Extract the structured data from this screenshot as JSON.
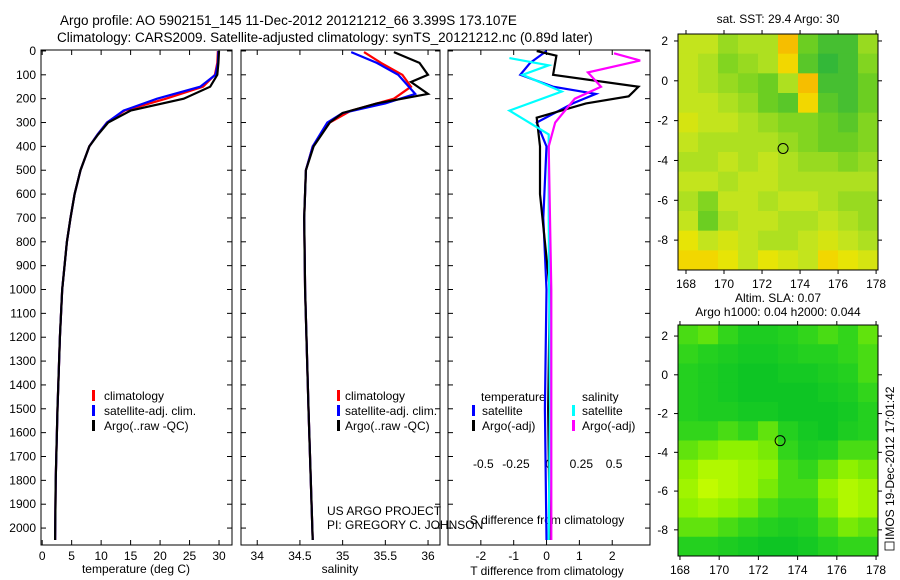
{
  "title": {
    "line1": "Argo profile: AO 5902151_145 11-Dec-2012 20121212_66 3.399S 173.107E",
    "line2": "Climatology: CARS2009. Satellite-adjusted climatology: synTS_20121212.nc (0.89d later)"
  },
  "credit": {
    "line1": "US ARGO PROJECT",
    "line2": "PI: GREGORY C. JOHNSON"
  },
  "stamp": "IMOS 19-Dec-2012 17:01:42",
  "chart_data": [
    {
      "id": "temperature",
      "type": "line",
      "xlabel": "temperature (deg C)",
      "ylabel": "depth",
      "xlim": [
        -0.2,
        32.2
      ],
      "ylim": [
        -4,
        2071
      ],
      "xticks": [
        0,
        5,
        10,
        15,
        20,
        25,
        30
      ],
      "yticks": [
        0,
        100,
        200,
        300,
        400,
        500,
        600,
        700,
        800,
        900,
        1000,
        1100,
        1200,
        1300,
        1400,
        1500,
        1600,
        1700,
        1800,
        1900,
        2000
      ],
      "legend": [
        "climatology",
        "satellite-adj. clim.",
        "Argo(..raw -QC)"
      ],
      "series": [
        {
          "name": "climatology",
          "color": "#ff0000",
          "points": [
            [
              29.8,
              0
            ],
            [
              29.7,
              50
            ],
            [
              29.3,
              100
            ],
            [
              27.3,
              150
            ],
            [
              21,
              200
            ],
            [
              14,
              250
            ],
            [
              11,
              300
            ],
            [
              9.4,
              350
            ],
            [
              8,
              400
            ],
            [
              6.5,
              500
            ],
            [
              5.5,
              600
            ],
            [
              4.8,
              700
            ],
            [
              4.2,
              800
            ],
            [
              3.4,
              1000
            ],
            [
              3.0,
              1200
            ],
            [
              2.6,
              1500
            ],
            [
              2.3,
              1800
            ],
            [
              2.2,
              2050
            ]
          ]
        },
        {
          "name": "satellite-adj. clim.",
          "color": "#0000ff",
          "points": [
            [
              29.9,
              0
            ],
            [
              29.8,
              50
            ],
            [
              29.4,
              100
            ],
            [
              26.8,
              150
            ],
            [
              19.5,
              200
            ],
            [
              13.8,
              250
            ],
            [
              11,
              300
            ],
            [
              9.4,
              350
            ],
            [
              8,
              400
            ],
            [
              6.5,
              500
            ],
            [
              5.5,
              600
            ],
            [
              4.8,
              700
            ],
            [
              4.2,
              800
            ],
            [
              3.4,
              1000
            ],
            [
              3.0,
              1200
            ],
            [
              2.6,
              1500
            ],
            [
              2.3,
              1800
            ],
            [
              2.2,
              2050
            ]
          ]
        },
        {
          "name": "Argo(..raw -QC)",
          "color": "#000000",
          "points": [
            [
              30,
              0
            ],
            [
              29.9,
              50
            ],
            [
              29.7,
              100
            ],
            [
              28.5,
              150
            ],
            [
              24,
              200
            ],
            [
              15,
              250
            ],
            [
              11.2,
              300
            ],
            [
              9.5,
              350
            ],
            [
              8,
              400
            ],
            [
              6.5,
              500
            ],
            [
              5.5,
              600
            ],
            [
              4.8,
              700
            ],
            [
              4.2,
              800
            ],
            [
              3.4,
              1000
            ],
            [
              3.0,
              1200
            ],
            [
              2.6,
              1500
            ],
            [
              2.3,
              1800
            ],
            [
              2.2,
              2050
            ]
          ]
        }
      ]
    },
    {
      "id": "salinity",
      "type": "line",
      "xlabel": "salinity",
      "xlim": [
        33.81,
        36.14
      ],
      "ylim": [
        -4,
        2071
      ],
      "xticks": [
        34,
        34.5,
        35,
        35.5,
        36
      ],
      "legend": [
        "climatology",
        "satellite-adj. clim.",
        "Argo(..raw -QC)"
      ],
      "series": [
        {
          "name": "climatology",
          "color": "#ff0000",
          "points": [
            [
              35.25,
              5
            ],
            [
              35.45,
              50
            ],
            [
              35.7,
              100
            ],
            [
              35.8,
              150
            ],
            [
              35.6,
              200
            ],
            [
              35.1,
              250
            ],
            [
              34.85,
              300
            ],
            [
              34.65,
              400
            ],
            [
              34.57,
              500
            ],
            [
              34.55,
              700
            ],
            [
              34.56,
              1000
            ],
            [
              34.6,
              1500
            ],
            [
              34.65,
              2050
            ]
          ]
        },
        {
          "name": "satellite-adj. clim.",
          "color": "#0000ff",
          "points": [
            [
              35.1,
              5
            ],
            [
              35.4,
              50
            ],
            [
              35.65,
              100
            ],
            [
              35.85,
              180
            ],
            [
              35.5,
              220
            ],
            [
              35.0,
              260
            ],
            [
              34.82,
              300
            ],
            [
              34.65,
              400
            ],
            [
              34.57,
              500
            ],
            [
              34.55,
              700
            ],
            [
              34.56,
              1000
            ],
            [
              34.6,
              1500
            ],
            [
              34.65,
              2050
            ]
          ]
        },
        {
          "name": "Argo(..raw -QC)",
          "color": "#000000",
          "points": [
            [
              35.6,
              5
            ],
            [
              35.9,
              50
            ],
            [
              36.0,
              100
            ],
            [
              35.8,
              130
            ],
            [
              36.0,
              180
            ],
            [
              35.4,
              220
            ],
            [
              35.0,
              260
            ],
            [
              34.85,
              300
            ],
            [
              34.66,
              400
            ],
            [
              34.57,
              500
            ],
            [
              34.55,
              700
            ],
            [
              34.56,
              1000
            ],
            [
              34.6,
              1500
            ],
            [
              34.65,
              2050
            ]
          ]
        }
      ]
    },
    {
      "id": "difference",
      "type": "line",
      "xlabel": "T difference from climatology",
      "xlabel_top": "S difference from climatology",
      "xlim": [
        -3.0,
        3.15
      ],
      "xlim_s": [
        -0.77,
        0.775
      ],
      "ylim": [
        -4,
        2071
      ],
      "xticks": [
        -2,
        -1,
        0,
        1,
        2
      ],
      "xticks_s": [
        -0.5,
        -0.25,
        0,
        0.25,
        0.5
      ],
      "legend": {
        "temperature_header": "temperature",
        "salinity_header": "salinity",
        "items": [
          "satellite",
          "Argo(-adj)",
          "satellite",
          "Argo(-adj)"
        ]
      },
      "series": [
        {
          "name": "T satellite",
          "axis": "T",
          "color": "#0000ff",
          "points": [
            [
              0,
              0
            ],
            [
              -0.5,
              50
            ],
            [
              -0.8,
              100
            ],
            [
              0.2,
              150
            ],
            [
              1.5,
              180
            ],
            [
              0.8,
              220
            ],
            [
              -0.3,
              300
            ],
            [
              0,
              400
            ],
            [
              -0.1,
              700
            ],
            [
              0,
              1000
            ],
            [
              -0.05,
              1500
            ],
            [
              0,
              2050
            ]
          ]
        },
        {
          "name": "T Argo(-adj)",
          "axis": "T",
          "color": "#000000",
          "points": [
            [
              -0.3,
              0
            ],
            [
              0.3,
              20
            ],
            [
              0.2,
              100
            ],
            [
              2.8,
              150
            ],
            [
              2.5,
              190
            ],
            [
              1.2,
              220
            ],
            [
              -0.3,
              280
            ],
            [
              -0.2,
              400
            ],
            [
              -0.2,
              600
            ],
            [
              0.1,
              1000
            ],
            [
              0.05,
              1500
            ],
            [
              0.1,
              2050
            ]
          ]
        },
        {
          "name": "S satellite",
          "axis": "S",
          "color": "#00ffff",
          "points": [
            [
              -0.3,
              30
            ],
            [
              0,
              60
            ],
            [
              -0.2,
              100
            ],
            [
              0.1,
              170
            ],
            [
              -0.3,
              250
            ],
            [
              0,
              350
            ],
            [
              0,
              700
            ],
            [
              0.01,
              1500
            ],
            [
              0,
              2050
            ]
          ]
        },
        {
          "name": "S Argo(-adj)",
          "axis": "S",
          "color": "#ff00ff",
          "points": [
            [
              0.5,
              10
            ],
            [
              0.7,
              40
            ],
            [
              0.3,
              90
            ],
            [
              0.4,
              150
            ],
            [
              0.2,
              200
            ],
            [
              0.05,
              300
            ],
            [
              0,
              400
            ],
            [
              0.02,
              1000
            ],
            [
              0.02,
              2050
            ]
          ]
        }
      ]
    },
    {
      "id": "sst-map",
      "type": "heatmap",
      "title": "sat. SST: 29.4 Argo: 30",
      "xlim": [
        167.58,
        178.1
      ],
      "ylim": [
        -9.5,
        2.35
      ],
      "xticks": [
        168,
        170,
        172,
        174,
        176,
        178
      ],
      "yticks": [
        2,
        0,
        -2,
        -4,
        -6,
        -8
      ],
      "marker": [
        173.107,
        -3.399
      ],
      "value_range": [
        28.8,
        30.2
      ],
      "grid": [
        [
          29.6,
          29.6,
          29.4,
          29.5,
          29.5,
          30.0,
          29.2,
          29.0,
          29.0,
          29.4
        ],
        [
          29.6,
          29.5,
          29.3,
          29.4,
          29.5,
          29.9,
          29.1,
          28.9,
          29.0,
          29.3
        ],
        [
          29.6,
          29.5,
          29.4,
          29.3,
          29.2,
          29.5,
          30.0,
          29.0,
          29.0,
          29.2
        ],
        [
          29.6,
          29.6,
          29.5,
          29.4,
          29.2,
          29.1,
          29.9,
          29.1,
          29.0,
          29.2
        ],
        [
          29.7,
          29.6,
          29.6,
          29.5,
          29.4,
          29.3,
          29.3,
          29.2,
          29.1,
          29.3
        ],
        [
          29.6,
          29.5,
          29.5,
          29.5,
          29.5,
          29.4,
          29.3,
          29.2,
          29.2,
          29.3
        ],
        [
          29.5,
          29.5,
          29.6,
          29.5,
          29.6,
          29.5,
          29.4,
          29.4,
          29.3,
          29.4
        ],
        [
          29.6,
          29.6,
          29.5,
          29.6,
          29.6,
          29.5,
          29.5,
          29.5,
          29.5,
          29.5
        ],
        [
          29.5,
          29.3,
          29.6,
          29.6,
          29.5,
          29.6,
          29.6,
          29.5,
          29.4,
          29.4
        ],
        [
          29.6,
          29.2,
          29.5,
          29.6,
          29.6,
          29.5,
          29.5,
          29.6,
          29.5,
          29.4
        ],
        [
          29.8,
          29.6,
          29.7,
          29.6,
          29.5,
          29.5,
          29.6,
          29.7,
          29.6,
          29.5
        ],
        [
          29.9,
          29.9,
          29.8,
          29.6,
          29.8,
          29.7,
          29.6,
          29.9,
          29.8,
          29.7
        ]
      ]
    },
    {
      "id": "sla-map",
      "type": "heatmap",
      "title": "Altim. SLA: 0.07",
      "subtitle": "Argo h1000: 0.04 h2000: 0.044",
      "xlim": [
        167.9,
        178.1
      ],
      "ylim": [
        -9.35,
        2.57
      ],
      "xticks": [
        168,
        170,
        172,
        174,
        176,
        178
      ],
      "yticks": [
        2,
        0,
        -2,
        -4,
        -6,
        -8
      ],
      "marker": [
        173.107,
        -3.399
      ],
      "value_range": [
        0.0,
        0.14
      ],
      "grid": [
        [
          0.07,
          0.08,
          0.06,
          0.04,
          0.04,
          0.05,
          0.06,
          0.07,
          0.06,
          0.08
        ],
        [
          0.06,
          0.05,
          0.04,
          0.03,
          0.03,
          0.04,
          0.05,
          0.05,
          0.06,
          0.07
        ],
        [
          0.05,
          0.04,
          0.03,
          0.02,
          0.02,
          0.03,
          0.03,
          0.04,
          0.05,
          0.07
        ],
        [
          0.05,
          0.04,
          0.03,
          0.02,
          0.02,
          0.02,
          0.02,
          0.03,
          0.04,
          0.06
        ],
        [
          0.05,
          0.04,
          0.04,
          0.03,
          0.03,
          0.02,
          0.02,
          0.02,
          0.03,
          0.05
        ],
        [
          0.06,
          0.06,
          0.07,
          0.06,
          0.08,
          0.05,
          0.03,
          0.02,
          0.04,
          0.05
        ],
        [
          0.08,
          0.09,
          0.1,
          0.1,
          0.09,
          0.06,
          0.04,
          0.05,
          0.07,
          0.07
        ],
        [
          0.1,
          0.12,
          0.12,
          0.11,
          0.1,
          0.07,
          0.06,
          0.08,
          0.1,
          0.09
        ],
        [
          0.11,
          0.13,
          0.12,
          0.11,
          0.09,
          0.07,
          0.07,
          0.1,
          0.12,
          0.11
        ],
        [
          0.1,
          0.11,
          0.1,
          0.09,
          0.07,
          0.06,
          0.06,
          0.09,
          0.12,
          0.11
        ],
        [
          0.08,
          0.08,
          0.07,
          0.06,
          0.05,
          0.04,
          0.05,
          0.07,
          0.09,
          0.08
        ],
        [
          0.05,
          0.05,
          0.04,
          0.03,
          0.02,
          0.02,
          0.03,
          0.05,
          0.06,
          0.06
        ]
      ]
    }
  ]
}
